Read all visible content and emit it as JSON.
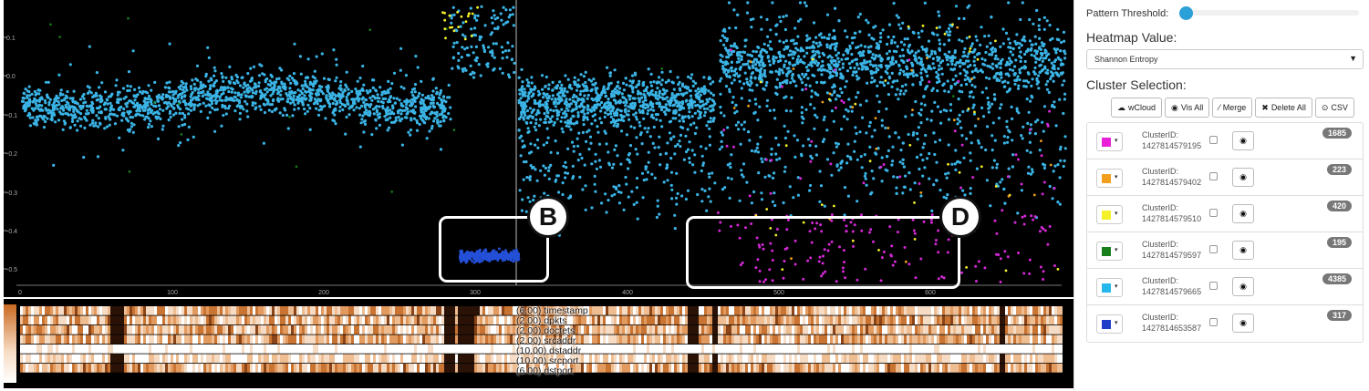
{
  "scatter": {
    "y_ticks": [
      "0.1",
      "0.0",
      "-0.1",
      "-0.2",
      "-0.3",
      "-0.4",
      "-0.5"
    ],
    "x_ticks": [
      "0",
      "100",
      "200",
      "300",
      "400",
      "500",
      "600"
    ]
  },
  "callouts": {
    "b": "B",
    "d": "D"
  },
  "heatmap": {
    "rows": [
      "(6.00) timestamp",
      "(2.00) dpkts",
      "(2.00) doctets",
      "(2.00) srcaddr",
      "(10.00) dstaddr",
      "(10.00) srcport",
      "(6.00) dstport"
    ]
  },
  "panel": {
    "pattern_threshold_label": "Pattern Threshold:",
    "heatmap_value_title": "Heatmap Value:",
    "heatmap_value_selected": "Shannon Entropy",
    "cluster_selection_title": "Cluster Selection:",
    "buttons": {
      "wcloud": "wCloud",
      "vis_all": "Vis All",
      "merge": "Merge",
      "delete_all": "Delete All",
      "csv": "CSV"
    },
    "clusters": [
      {
        "label": "ClusterID:",
        "id": "1427814579195",
        "count": "1685",
        "color": "#e81fd6"
      },
      {
        "label": "ClusterID:",
        "id": "1427814579402",
        "count": "223",
        "color": "#f0a01c"
      },
      {
        "label": "ClusterID:",
        "id": "1427814579510",
        "count": "420",
        "color": "#f4f02a"
      },
      {
        "label": "ClusterID:",
        "id": "1427814579597",
        "count": "195",
        "color": "#17801d"
      },
      {
        "label": "ClusterID:",
        "id": "1427814579665",
        "count": "4385",
        "color": "#26b8ea"
      },
      {
        "label": "ClusterID:",
        "id": "1427814653587",
        "count": "317",
        "color": "#1f3fc8"
      }
    ]
  },
  "colors": {
    "cyan": "#3ab4e6",
    "blue": "#2450d8",
    "magenta": "#d328d6",
    "accent": "#2b9fd8"
  },
  "icons": [
    "cloud-icon",
    "eye-icon",
    "wand-icon",
    "x-icon",
    "download-icon",
    "caret-down-icon",
    "eye-icon"
  ]
}
